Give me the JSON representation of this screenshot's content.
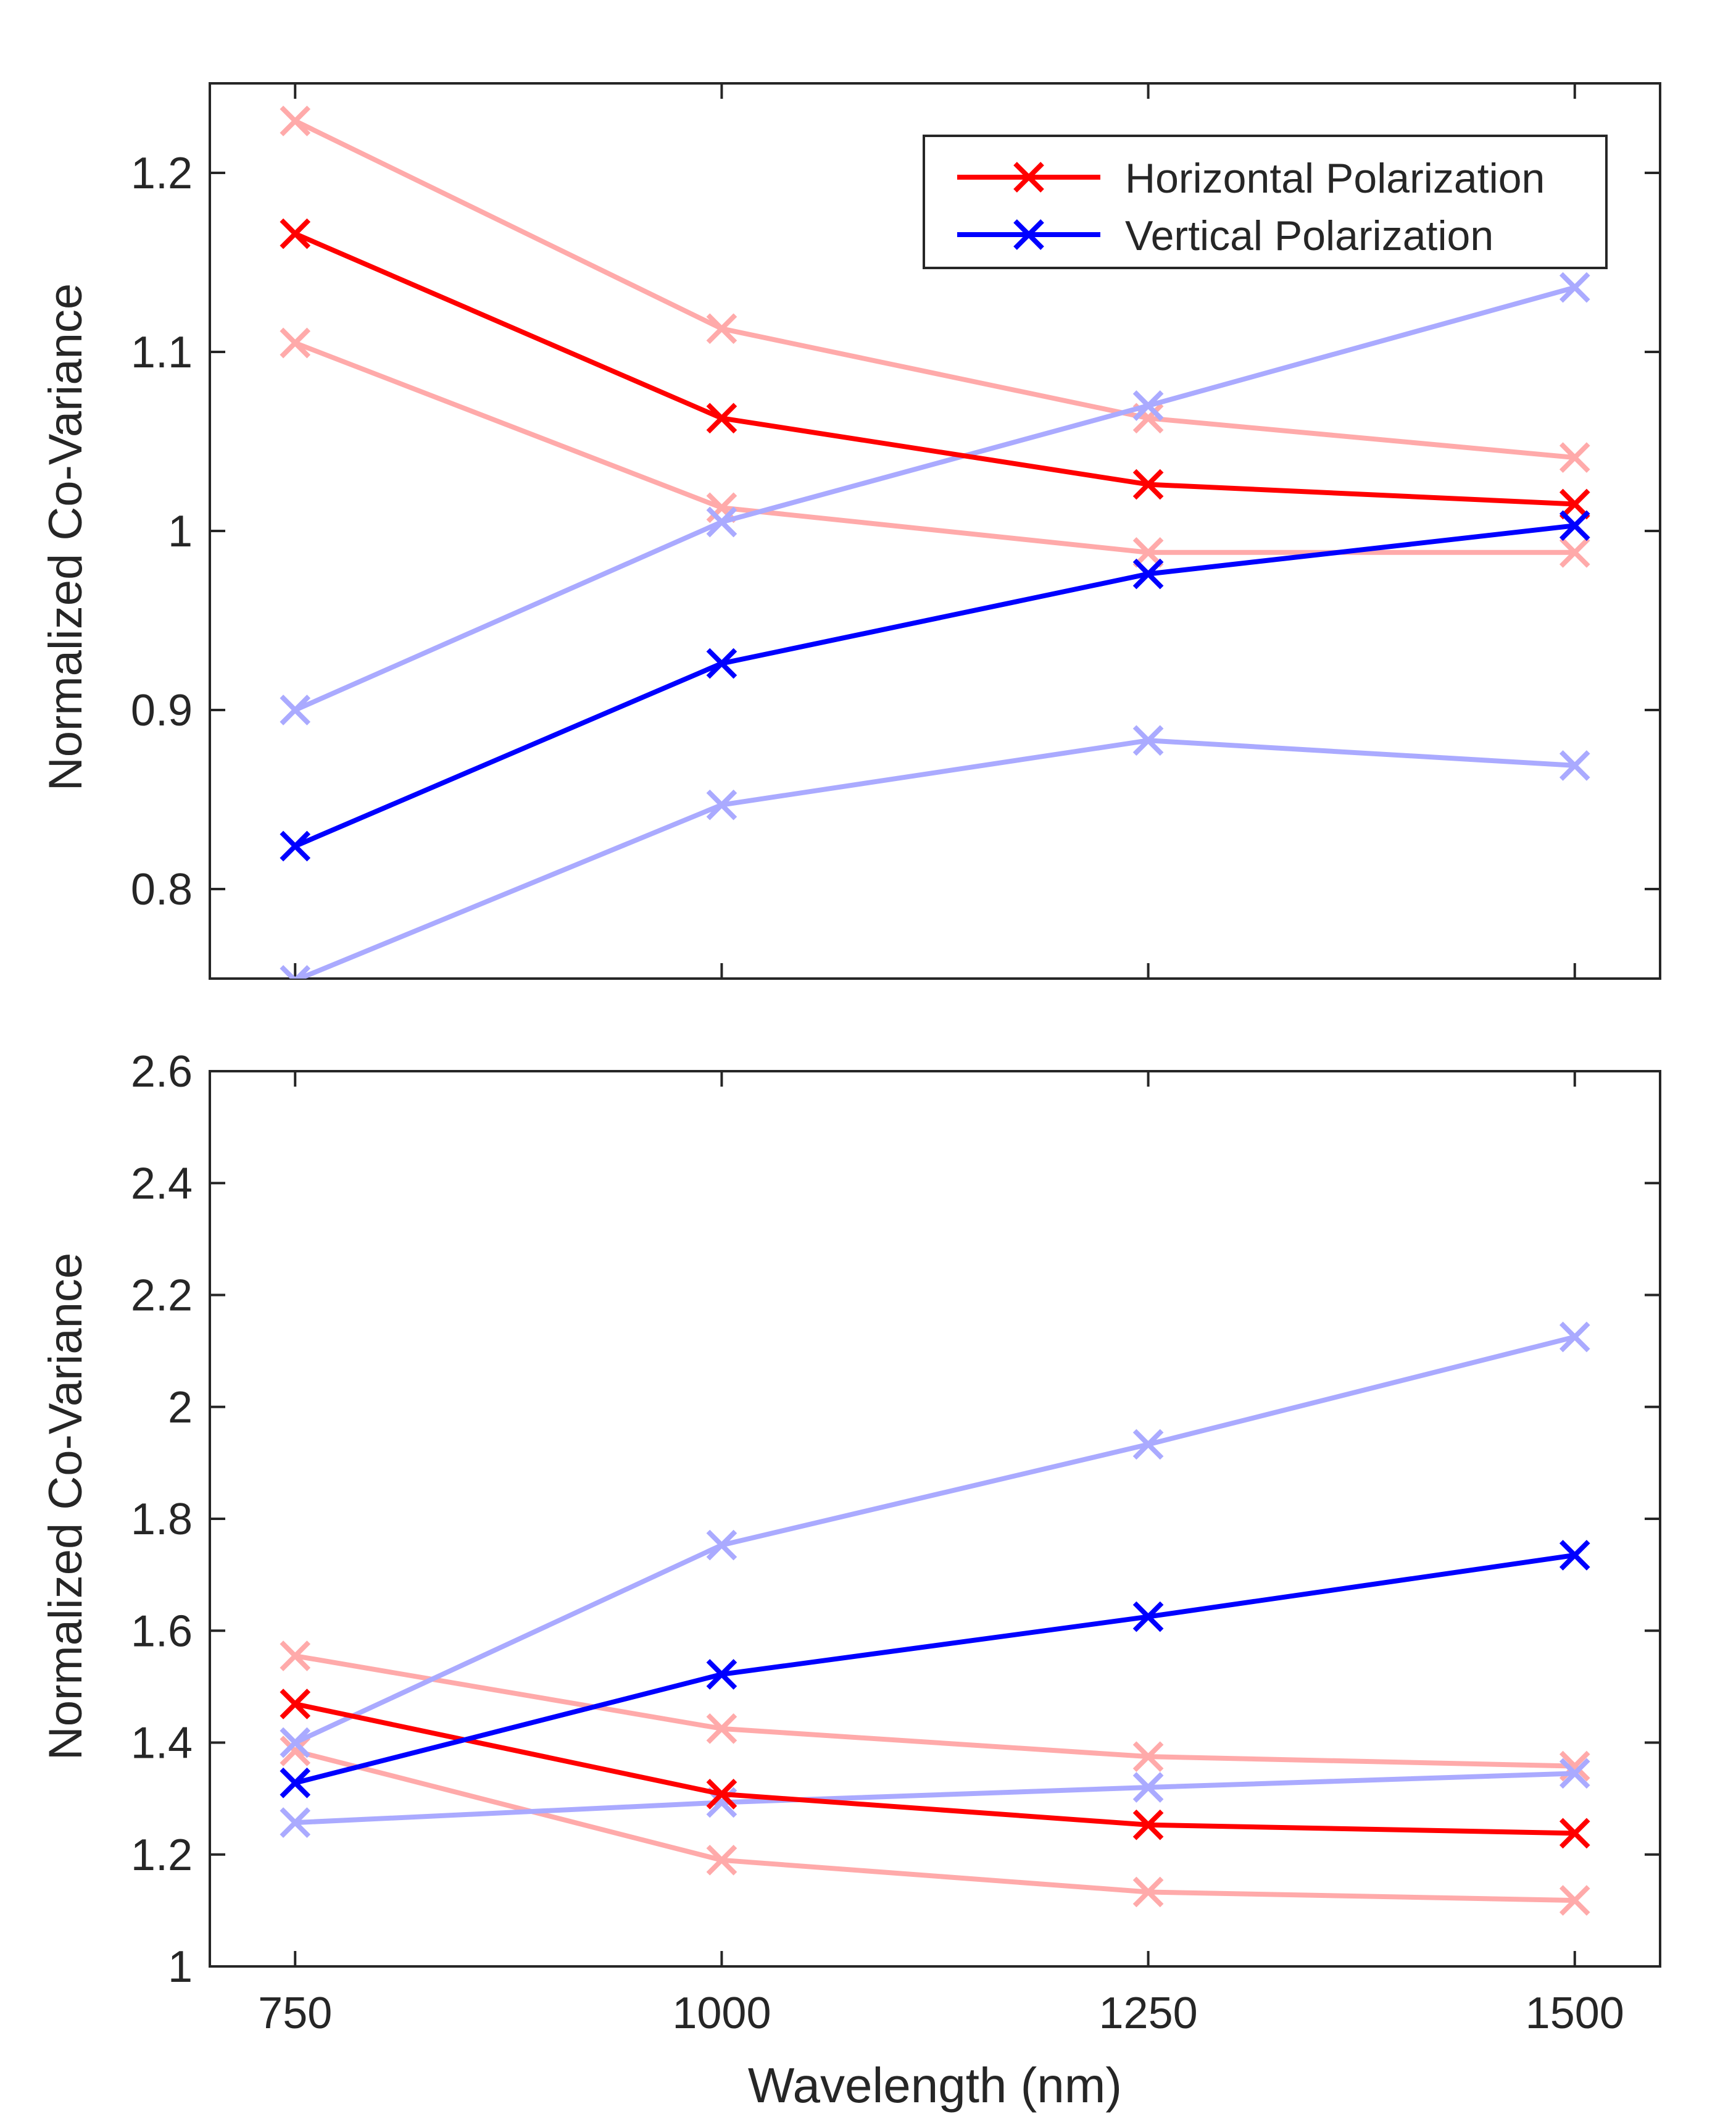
{
  "chart_data": [
    {
      "type": "line",
      "panel": "top",
      "xlabel": "",
      "ylabel": "Normalized Co-Variance",
      "x": [
        750,
        1000,
        1250,
        1500
      ],
      "xlim": [
        700,
        1550
      ],
      "ylim": [
        0.75,
        1.25
      ],
      "yticks": [
        0.8,
        0.9,
        1.0,
        1.1,
        1.2
      ],
      "ytick_labels": [
        "0.8",
        "0.9",
        "1",
        "1.1",
        "1.2"
      ],
      "xtick_labels": [],
      "grid": false,
      "legend": "top-right",
      "marker": "x",
      "series": [
        {
          "name": "Horizontal Polarization",
          "role": "mean",
          "color": "#ff0000",
          "values": [
            1.166,
            1.063,
            1.026,
            1.015
          ]
        },
        {
          "name": "Vertical Polarization",
          "role": "mean",
          "color": "#0000ff",
          "values": [
            0.824,
            0.926,
            0.976,
            1.003
          ]
        },
        {
          "role": "upper-bound",
          "color": "#ffaaaa",
          "values": [
            1.229,
            1.113,
            1.063,
            1.041
          ]
        },
        {
          "role": "lower-bound",
          "color": "#ffaaaa",
          "values": [
            1.105,
            1.013,
            0.988,
            0.988
          ]
        },
        {
          "role": "upper-bound",
          "color": "#aaaaff",
          "values": [
            0.9,
            1.005,
            1.07,
            1.136
          ]
        },
        {
          "role": "lower-bound",
          "color": "#aaaaff",
          "values": [
            0.749,
            0.847,
            0.883,
            0.869
          ]
        }
      ]
    },
    {
      "type": "line",
      "panel": "bottom",
      "xlabel": "Wavelength (nm)",
      "ylabel": "Normalized Co-Variance",
      "x": [
        750,
        1000,
        1250,
        1500
      ],
      "xlim": [
        700,
        1550
      ],
      "ylim": [
        1.0,
        2.6
      ],
      "yticks": [
        1.0,
        1.2,
        1.4,
        1.6,
        1.8,
        2.0,
        2.2,
        2.4,
        2.6
      ],
      "ytick_labels": [
        "1",
        "1.2",
        "1.4",
        "1.6",
        "1.8",
        "2",
        "2.2",
        "2.4",
        "2.6"
      ],
      "xtick_labels": [
        "750",
        "1000",
        "1250",
        "1500"
      ],
      "grid": false,
      "marker": "x",
      "series": [
        {
          "name": "Horizontal Polarization",
          "role": "mean",
          "color": "#ff0000",
          "values": [
            1.469,
            1.308,
            1.253,
            1.238
          ]
        },
        {
          "name": "Vertical Polarization",
          "role": "mean",
          "color": "#0000ff",
          "values": [
            1.328,
            1.522,
            1.625,
            1.735
          ]
        },
        {
          "role": "upper-bound",
          "color": "#ffaaaa",
          "values": [
            1.555,
            1.425,
            1.375,
            1.358
          ]
        },
        {
          "role": "lower-bound",
          "color": "#ffaaaa",
          "values": [
            1.385,
            1.19,
            1.133,
            1.118
          ]
        },
        {
          "role": "upper-bound",
          "color": "#aaaaff",
          "values": [
            1.4,
            1.753,
            1.933,
            2.125
          ]
        },
        {
          "role": "lower-bound",
          "color": "#aaaaff",
          "values": [
            1.257,
            1.293,
            1.32,
            1.345
          ]
        }
      ]
    }
  ]
}
